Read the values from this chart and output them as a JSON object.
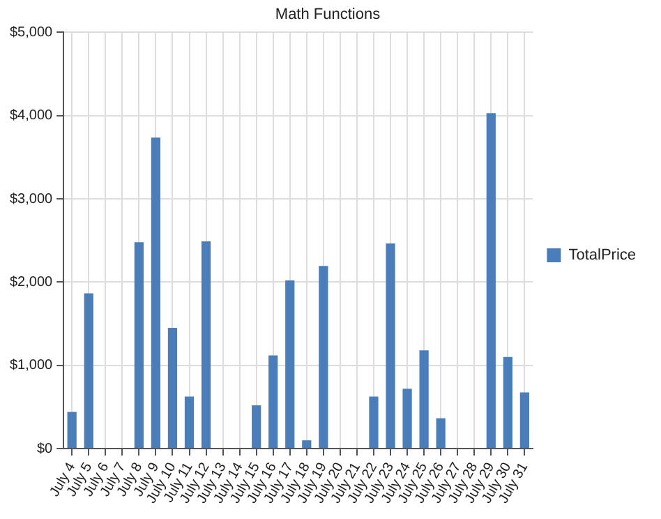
{
  "chart_data": {
    "type": "bar",
    "title": "Math Functions",
    "categories": [
      "July 4",
      "July 5",
      "July 6",
      "July 7",
      "July 8",
      "July 9",
      "July 10",
      "July 11",
      "July 12",
      "July 13",
      "July 14",
      "July 15",
      "July 16",
      "July 17",
      "July 18",
      "July 19",
      "July 20",
      "July 21",
      "July 22",
      "July 23",
      "July 24",
      "July 25",
      "July 26",
      "July 27",
      "July 28",
      "July 29",
      "July 30",
      "July 31"
    ],
    "series": [
      {
        "name": "TotalPrice",
        "color": "#4a7ebb",
        "values": [
          440,
          1865,
          0,
          0,
          2480,
          3735,
          1450,
          625,
          2490,
          0,
          0,
          520,
          1120,
          2020,
          100,
          2195,
          0,
          0,
          625,
          2465,
          720,
          1180,
          365,
          0,
          0,
          4030,
          1100,
          675
        ]
      }
    ],
    "ylim": [
      0,
      5000
    ],
    "yticks": [
      {
        "value": 0,
        "label": "$0"
      },
      {
        "value": 1000,
        "label": "$1,000"
      },
      {
        "value": 2000,
        "label": "$2,000"
      },
      {
        "value": 3000,
        "label": "$3,000"
      },
      {
        "value": 4000,
        "label": "$4,000"
      },
      {
        "value": 5000,
        "label": "$5,000"
      }
    ],
    "grid": true,
    "legend": "right"
  }
}
